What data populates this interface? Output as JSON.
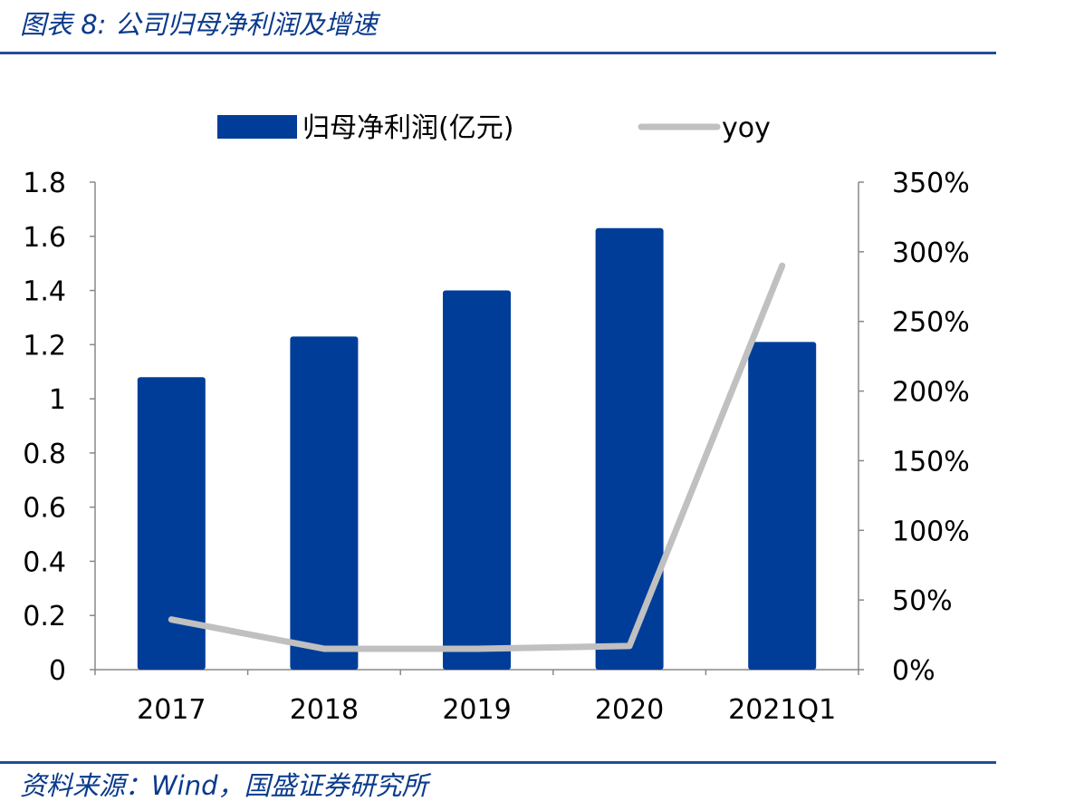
{
  "figure": {
    "title": "图表 8:  公司归母净利润及增速",
    "source": "资料来源：Wind，国盛证券研究所"
  },
  "chart_data": {
    "type": "bar",
    "categories": [
      "2017",
      "2018",
      "2019",
      "2020",
      "2021Q1"
    ],
    "series": [
      {
        "name": "归母净利润(亿元)",
        "type": "bar",
        "axis": "left",
        "color": "#003d99",
        "values": [
          1.08,
          1.23,
          1.4,
          1.63,
          1.21
        ]
      },
      {
        "name": "yoy",
        "type": "line",
        "axis": "right",
        "color": "#c0c0c0",
        "values": [
          0.36,
          0.15,
          0.15,
          0.17,
          2.9
        ]
      }
    ],
    "y_left": {
      "range": [
        0,
        1.8
      ],
      "ticks": [
        0,
        0.2,
        0.4,
        0.6,
        0.8,
        1,
        1.2,
        1.4,
        1.6,
        1.8
      ],
      "tick_labels": [
        "0",
        "0.2",
        "0.4",
        "0.6",
        "0.8",
        "1",
        "1.2",
        "1.4",
        "1.6",
        "1.8"
      ]
    },
    "y_right": {
      "range": [
        0,
        3.5
      ],
      "ticks": [
        0,
        0.5,
        1.0,
        1.5,
        2.0,
        2.5,
        3.0,
        3.5
      ],
      "tick_labels": [
        "0%",
        "50%",
        "100%",
        "150%",
        "200%",
        "250%",
        "300%",
        "350%"
      ]
    },
    "grid": false,
    "legend": "top-center"
  }
}
